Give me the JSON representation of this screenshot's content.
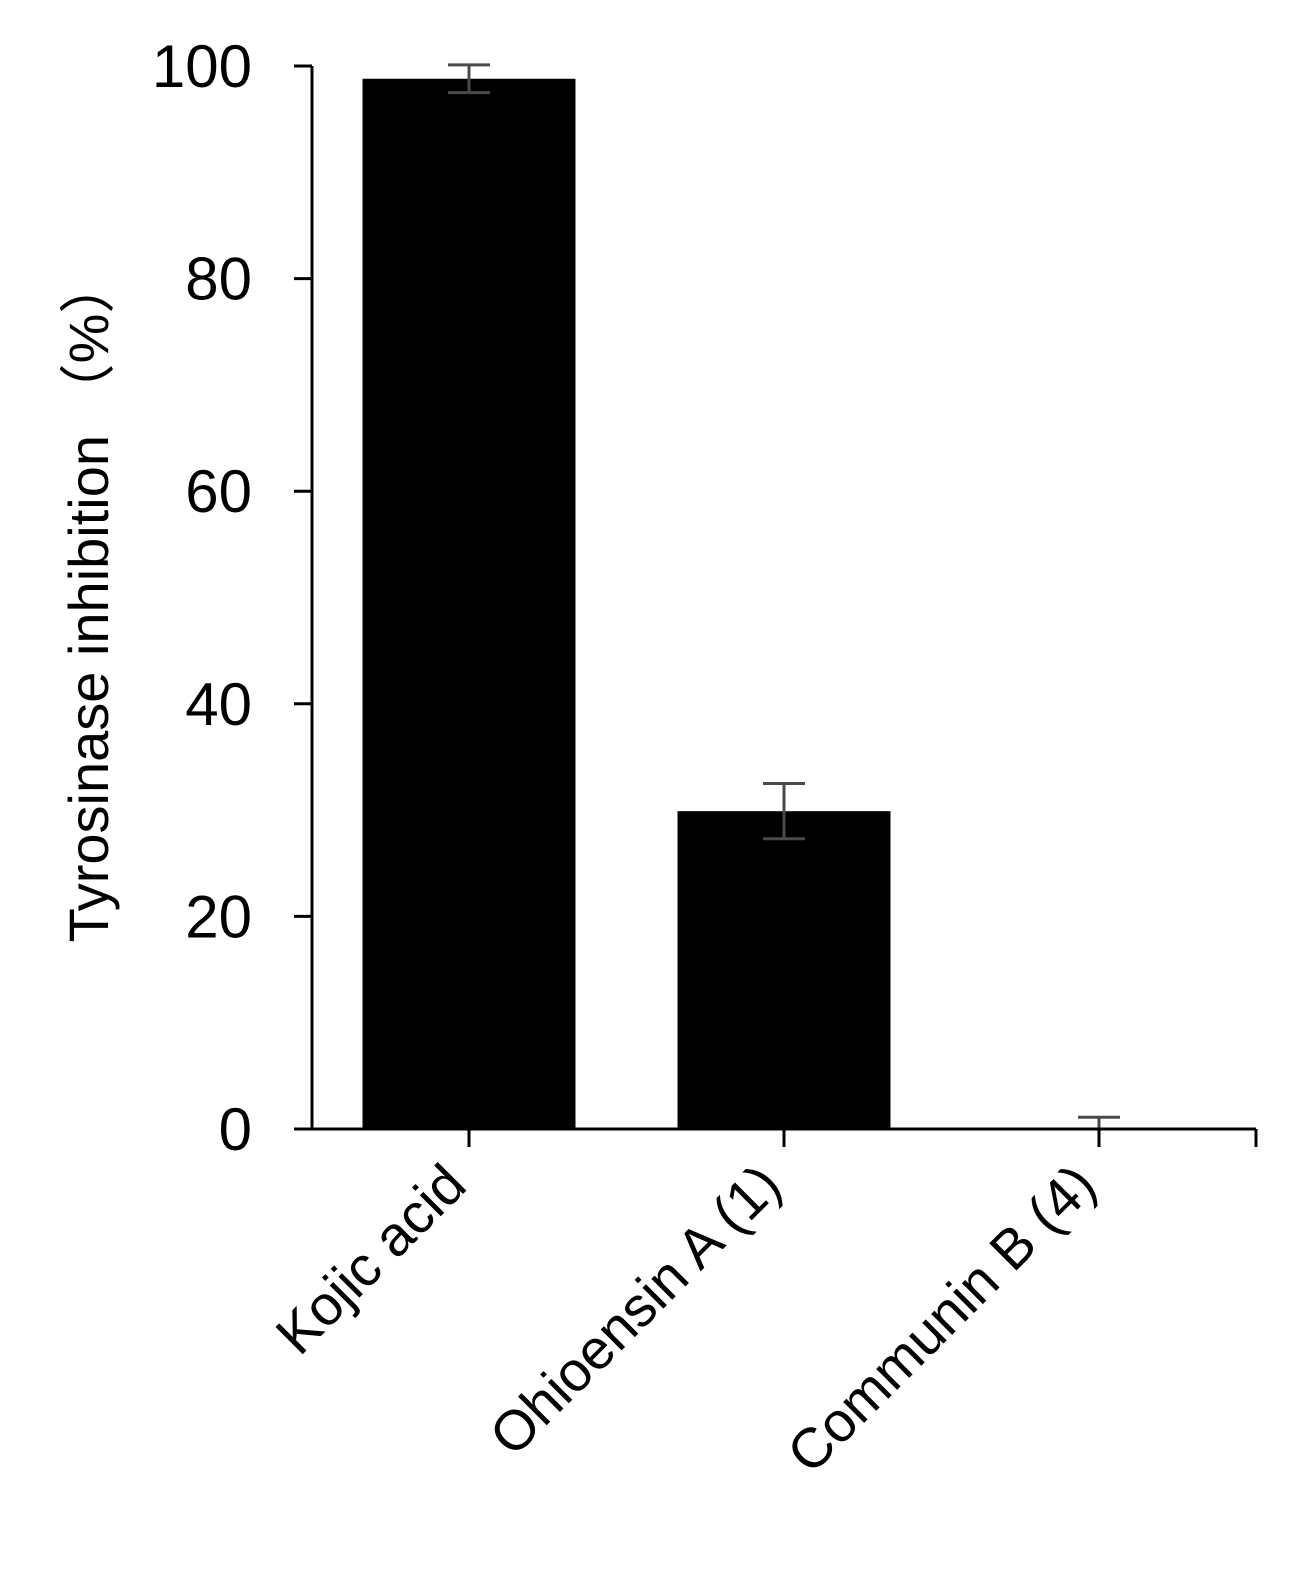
{
  "chart_data": {
    "type": "bar",
    "title": "",
    "xlabel": "",
    "ylabel": "Tyrosinase inhibition （%）",
    "categories": [
      "Kojic acid",
      "Ohioensin A (1)",
      "Communin B (4)"
    ],
    "values": [
      98.8,
      29.9,
      0
    ],
    "errors": [
      1.3,
      2.6,
      1.1
    ],
    "ylim": [
      0,
      100
    ],
    "yticks": [
      "0",
      "20",
      "40",
      "60",
      "80",
      "100"
    ],
    "grid": false,
    "legend": "none",
    "colors": {
      "bar": "#000000",
      "error_bar": "#4a4a4a",
      "axis": "#000000"
    }
  }
}
